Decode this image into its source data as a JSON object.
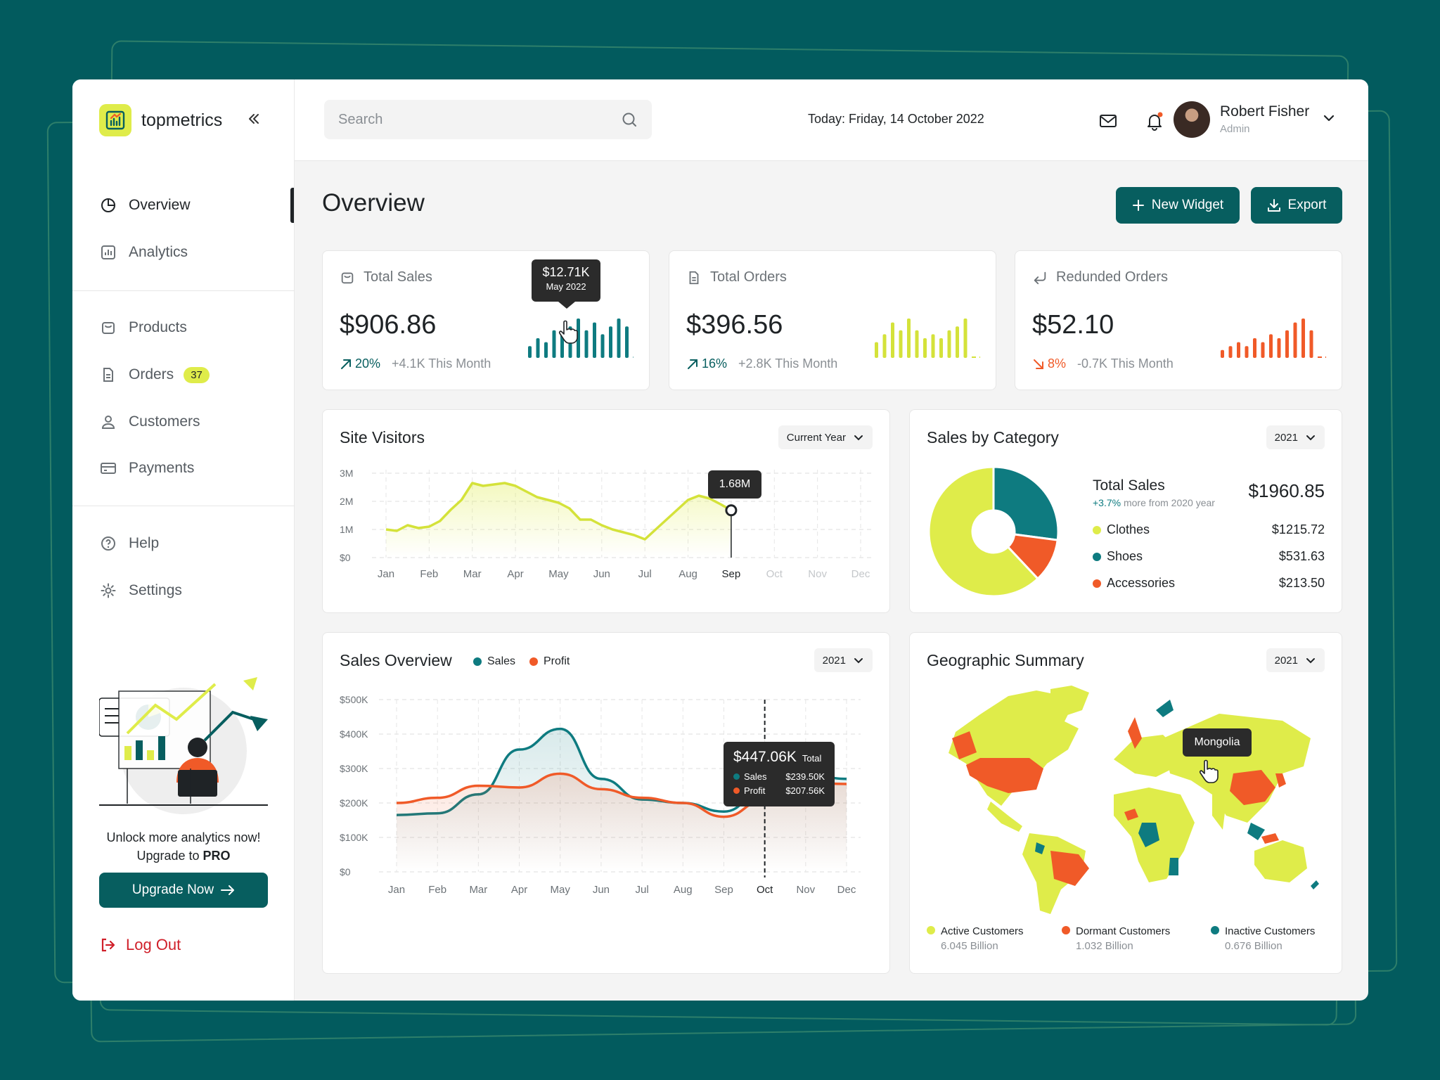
{
  "app": {
    "brand": "topmetrics"
  },
  "sidebar": {
    "items": [
      {
        "label": "Overview"
      },
      {
        "label": "Analytics"
      },
      {
        "label": "Products"
      },
      {
        "label": "Orders",
        "badge": "37"
      },
      {
        "label": "Customers"
      },
      {
        "label": "Payments"
      },
      {
        "label": "Help"
      },
      {
        "label": "Settings"
      }
    ],
    "promo_line1": "Unlock more analytics now!",
    "promo_line2": "Upgrade to ",
    "promo_pro": "PRO",
    "upgrade_label": "Upgrade Now",
    "logout_label": "Log Out"
  },
  "topbar": {
    "search_placeholder": "Search",
    "today_label": "Today: ",
    "today_date": "Friday, 14 October 2022",
    "user_name": "Robert Fisher",
    "user_role": "Admin"
  },
  "page": {
    "title": "Overview",
    "new_widget_label": "New Widget",
    "export_label": "Export"
  },
  "kpis": [
    {
      "label": "Total Sales",
      "value": "$906.86",
      "change": "20%",
      "direction": "up",
      "note": "+4.1K This Month",
      "tooltip_value": "$12.71K",
      "tooltip_period": "May 2022",
      "color": "#0e7b80",
      "bars": [
        3,
        5,
        4,
        7,
        6,
        8,
        10,
        7,
        9,
        6,
        8,
        10,
        8
      ]
    },
    {
      "label": "Total Orders",
      "value": "$396.56",
      "change": "16%",
      "direction": "up",
      "note": "+2.8K This Month",
      "color": "#d4e23a",
      "bars": [
        4,
        6,
        9,
        7,
        10,
        7,
        5,
        6,
        5,
        7,
        8,
        10
      ]
    },
    {
      "label": "Redunded Orders",
      "value": "$52.10",
      "change": "8%",
      "direction": "down",
      "note": "-0.7K This Month",
      "color": "#f05a28",
      "bars": [
        2,
        3,
        4,
        3,
        5,
        4,
        6,
        5,
        7,
        9,
        10,
        7
      ]
    }
  ],
  "site_visitors": {
    "title": "Site Visitors",
    "filter": "Current Year",
    "tooltip": "1.68M"
  },
  "sales_category": {
    "title": "Sales by Category",
    "filter": "2021",
    "total_label": "Total Sales",
    "total_value": "$1960.85",
    "growth_pct": "+3.7%",
    "growth_text": " more from 2020 year",
    "items": [
      {
        "label": "Clothes",
        "value": "$1215.72",
        "color": "#dfec4a"
      },
      {
        "label": "Shoes",
        "value": "$531.63",
        "color": "#0e7b80"
      },
      {
        "label": "Accessories",
        "value": "$213.50",
        "color": "#f05a28"
      }
    ]
  },
  "sales_overview": {
    "title": "Sales Overview",
    "filter": "2021",
    "legend_sales": "Sales",
    "legend_profit": "Profit",
    "tooltip_total_value": "$447.06K",
    "tooltip_total_label": "Total",
    "tooltip_sales_label": "Sales",
    "tooltip_sales_value": "$239.50K",
    "tooltip_profit_label": "Profit",
    "tooltip_profit_value": "$207.56K"
  },
  "geo": {
    "title": "Geographic Summary",
    "filter": "2021",
    "tooltip": "Mongolia",
    "legend": [
      {
        "label": "Active Customers",
        "value": "6.045 Billion",
        "color": "#dfec4a"
      },
      {
        "label": "Dormant Customers",
        "value": "1.032 Billion",
        "color": "#f05a28"
      },
      {
        "label": "Inactive Customers",
        "value": "0.676 Billion",
        "color": "#0e7b80"
      }
    ]
  },
  "chart_data": [
    {
      "type": "area",
      "title": "Site Visitors",
      "categories": [
        "Jan",
        "Feb",
        "Mar",
        "Apr",
        "May",
        "Jun",
        "Jul",
        "Aug",
        "Sep",
        "Oct",
        "Nov",
        "Dec"
      ],
      "y_ticks": [
        "$0",
        "1M",
        "2M",
        "3M"
      ],
      "ylim": [
        0,
        3000000
      ],
      "x": [
        0,
        0.25,
        0.5,
        0.75,
        1,
        1.25,
        1.5,
        1.75,
        2,
        2.25,
        2.5,
        2.75,
        3,
        3.25,
        3.5,
        3.75,
        4,
        4.25,
        4.5,
        4.75,
        5,
        5.25,
        5.5,
        5.75,
        6,
        6.25,
        6.5,
        6.75,
        7,
        7.25,
        7.5,
        7.75,
        8
      ],
      "series": [
        {
          "values": [
            1000000,
            950000,
            1150000,
            1050000,
            1100000,
            1300000,
            1700000,
            2050000,
            2650000,
            2550000,
            2600000,
            2650000,
            2550000,
            2350000,
            2150000,
            2050000,
            1950000,
            1750000,
            1350000,
            1350000,
            1150000,
            1000000,
            900000,
            800000,
            650000,
            1000000,
            1350000,
            1700000,
            2050000,
            2200000,
            2100000,
            1900000,
            1680000
          ]
        }
      ],
      "highlight": {
        "category": "Sep",
        "value": 1680000
      }
    },
    {
      "type": "pie",
      "title": "Sales by Category",
      "categories": [
        "Clothes",
        "Shoes",
        "Accessories"
      ],
      "values": [
        1215.72,
        531.63,
        213.5
      ]
    },
    {
      "type": "line",
      "title": "Sales Overview",
      "categories": [
        "Jan",
        "Feb",
        "Mar",
        "Apr",
        "May",
        "Jun",
        "Jul",
        "Aug",
        "Sep",
        "Oct",
        "Nov",
        "Dec"
      ],
      "y_ticks": [
        "$0",
        "$100K",
        "$200K",
        "$300K",
        "$400K",
        "$500K"
      ],
      "ylim": [
        0,
        500000
      ],
      "series": [
        {
          "name": "Sales",
          "color": "#0e7b80",
          "values": [
            165000,
            170000,
            225000,
            355000,
            415000,
            270000,
            210000,
            200000,
            175000,
            239500,
            285000,
            270000
          ]
        },
        {
          "name": "Profit",
          "color": "#f05a28",
          "values": [
            200000,
            215000,
            250000,
            245000,
            285000,
            240000,
            215000,
            200000,
            160000,
            207560,
            260000,
            255000
          ]
        }
      ],
      "highlight": {
        "category": "Oct"
      }
    }
  ]
}
